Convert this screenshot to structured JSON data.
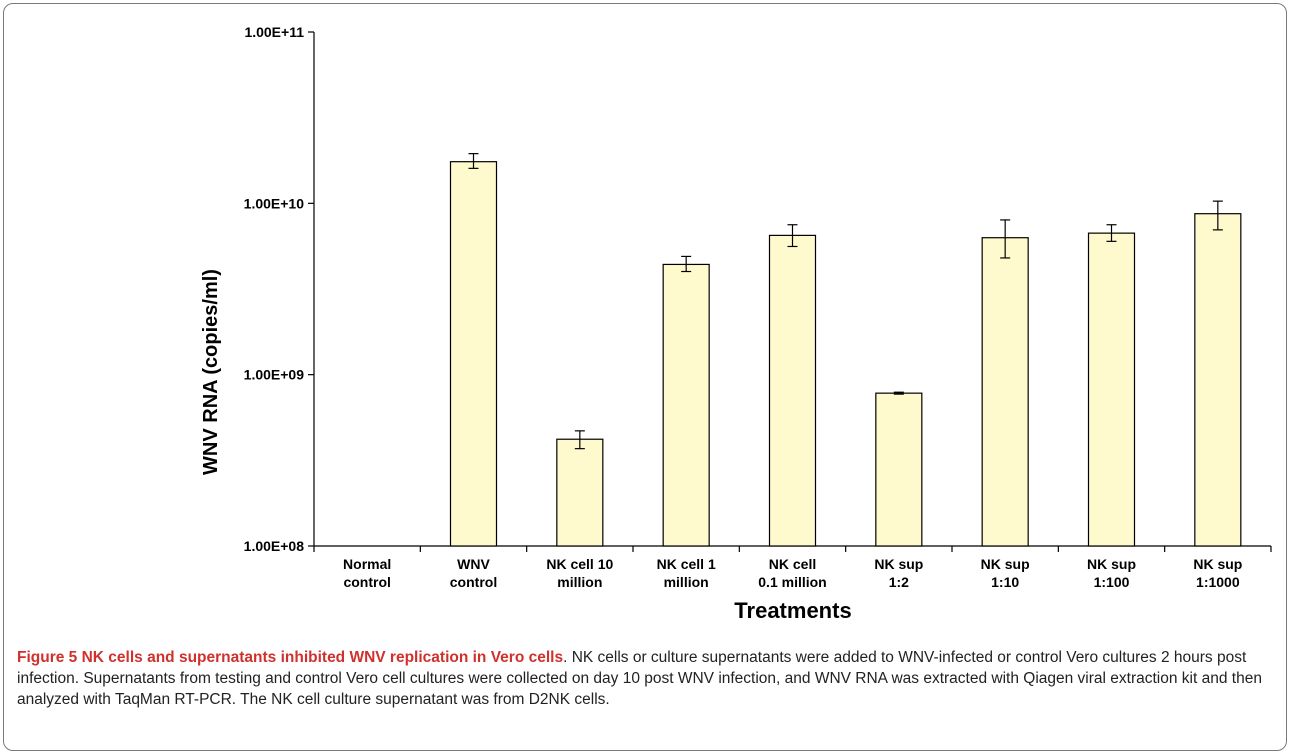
{
  "chart_data": {
    "type": "bar",
    "xlabel": "Treatments",
    "ylabel": "WNV RNA (copies/ml)",
    "yscale": "log",
    "ylim": [
      100000000,
      100000000000
    ],
    "yticks": [
      "1.00E+08",
      "1.00E+09",
      "1.00E+10",
      "1.00E+11"
    ],
    "ytick_values": [
      100000000,
      1000000000,
      10000000000,
      100000000000
    ],
    "grid": false,
    "categories": [
      [
        "Normal",
        "control"
      ],
      [
        "WNV",
        "control"
      ],
      [
        "NK cell 10",
        "million"
      ],
      [
        "NK cell 1",
        "million"
      ],
      [
        "NK cell",
        "0.1 million"
      ],
      [
        "NK sup",
        "1:2"
      ],
      [
        "NK sup",
        "1:10"
      ],
      [
        "NK sup",
        "1:100"
      ],
      [
        "NK sup",
        "1:1000"
      ]
    ],
    "values": [
      null,
      17500000000,
      420000000,
      4400000000,
      6500000000,
      780000000,
      6300000000,
      6700000000,
      8700000000
    ],
    "error_low": [
      null,
      16000000000,
      370000000,
      4000000000,
      5600000000,
      770000000,
      4800000000,
      6000000000,
      7000000000
    ],
    "error_high": [
      null,
      19500000000,
      470000000,
      4900000000,
      7500000000,
      790000000,
      8000000000,
      7500000000,
      10300000000
    ],
    "bar_color": "#fffacd",
    "bar_edge": "#000000"
  },
  "caption": {
    "label": "Figure 5",
    "title": "NK cells and supernatants inhibited WNV replication in Vero cells",
    "body": ". NK cells or culture supernatants were added to WNV-infected or control Vero cultures 2 hours post infection. Supernatants from testing and control Vero cell cultures were collected on day 10 post WNV infection, and WNV RNA was extracted with Qiagen viral extraction kit and then analyzed with TaqMan RT-PCR. The NK cell culture supernatant was from D2NK cells."
  }
}
